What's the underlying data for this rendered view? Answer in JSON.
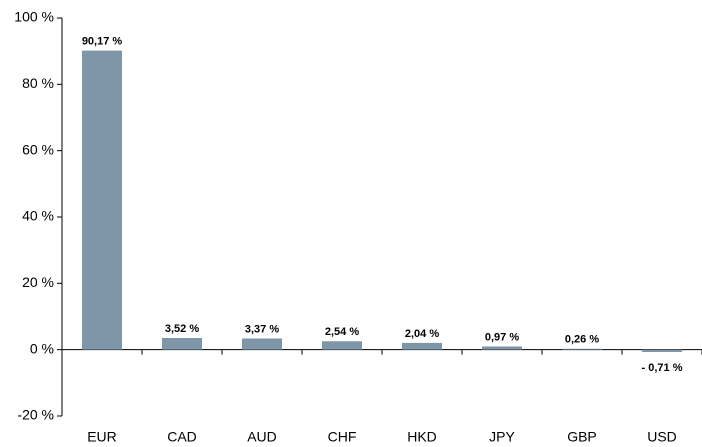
{
  "chart_data": {
    "type": "bar",
    "categories": [
      "EUR",
      "CAD",
      "AUD",
      "CHF",
      "HKD",
      "JPY",
      "GBP",
      "USD"
    ],
    "values": [
      90.17,
      3.52,
      3.37,
      2.54,
      2.04,
      0.97,
      0.26,
      -0.71
    ],
    "value_labels": [
      "90,17 %",
      "3,52 %",
      "3,37 %",
      "2,54 %",
      "2,04 %",
      "0,97 %",
      "0,26 %",
      "- 0,71 %"
    ],
    "color": "#7f96a9",
    "ylim": [
      -20,
      100
    ],
    "yticks": [
      {
        "value": -20,
        "label": "-20 %"
      },
      {
        "value": 0,
        "label": "0 %"
      },
      {
        "value": 20,
        "label": "20 %"
      },
      {
        "value": 40,
        "label": "40 %"
      },
      {
        "value": 60,
        "label": "60 %"
      },
      {
        "value": 80,
        "label": "80 %"
      },
      {
        "value": 100,
        "label": "100 %"
      }
    ],
    "grid": false
  }
}
